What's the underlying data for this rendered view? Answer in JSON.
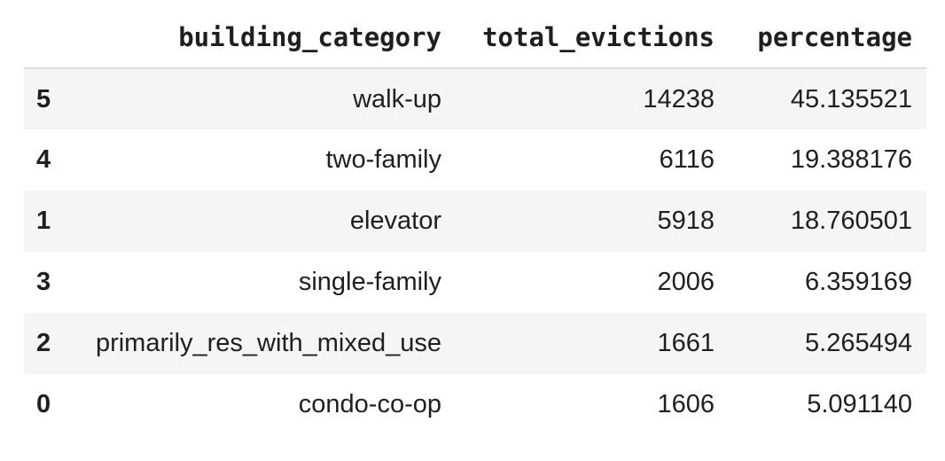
{
  "table": {
    "columns": [
      "",
      "building_category",
      "total_evictions",
      "percentage"
    ],
    "rows": [
      {
        "index": "5",
        "building_category": "walk-up",
        "total_evictions": "14238",
        "percentage": "45.135521"
      },
      {
        "index": "4",
        "building_category": "two-family",
        "total_evictions": "6116",
        "percentage": "19.388176"
      },
      {
        "index": "1",
        "building_category": "elevator",
        "total_evictions": "5918",
        "percentage": "18.760501"
      },
      {
        "index": "3",
        "building_category": "single-family",
        "total_evictions": "2006",
        "percentage": "6.359169"
      },
      {
        "index": "2",
        "building_category": "primarily_res_with_mixed_use",
        "total_evictions": "1661",
        "percentage": "5.265494"
      },
      {
        "index": "0",
        "building_category": "condo-co-op",
        "total_evictions": "1606",
        "percentage": "5.091140"
      }
    ]
  }
}
